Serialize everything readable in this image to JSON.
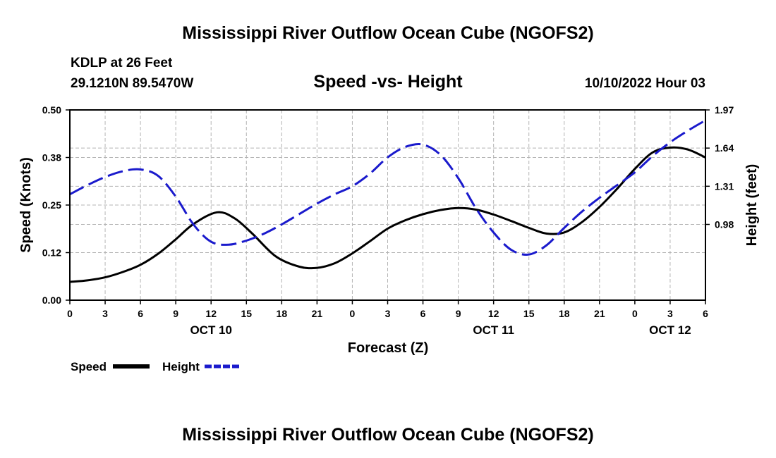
{
  "header": {
    "title": "Mississippi River Outflow Ocean Cube (NGOFS2)",
    "station": "KDLP at 26 Feet",
    "coords": "29.1210N  89.5470W",
    "chart_title": "Speed -vs- Height",
    "timestamp": "10/10/2022 Hour 03"
  },
  "footer": {
    "title": "Mississippi River Outflow Ocean Cube (NGOFS2)"
  },
  "colors": {
    "speed": "#000000",
    "height": "#1a1acc",
    "grid": "#b4b4b4"
  },
  "chart_data": {
    "type": "line",
    "title": "Speed -vs- Height",
    "xlabel": "Forecast (Z)",
    "ylabel": "Speed (Knots)",
    "y2label": "Height (feet)",
    "xlim": [
      0,
      54
    ],
    "ylim": [
      0,
      0.5
    ],
    "y2lim": [
      0.325,
      1.97
    ],
    "x_ticks": [
      0,
      3,
      6,
      9,
      12,
      15,
      18,
      21,
      24,
      27,
      30,
      33,
      36,
      39,
      42,
      45,
      48,
      51,
      54
    ],
    "x_tick_labels": [
      "0",
      "3",
      "6",
      "9",
      "12",
      "15",
      "18",
      "21",
      "0",
      "3",
      "6",
      "9",
      "12",
      "15",
      "18",
      "21",
      "0",
      "3",
      "6"
    ],
    "y_ticks": [
      0,
      0.125,
      0.25,
      0.375,
      0.5
    ],
    "y_tick_labels": [
      "0.00",
      "0.12",
      "0.25",
      "0.38",
      "0.50"
    ],
    "y2_ticks": [
      0.98,
      1.31,
      1.64,
      1.97
    ],
    "y2_tick_labels": [
      "0.98",
      "1.31",
      "1.64",
      "1.97"
    ],
    "date_labels": [
      {
        "x": 12,
        "label": "OCT 10"
      },
      {
        "x": 36,
        "label": "OCT 11"
      },
      {
        "x": 51,
        "label": "OCT 12"
      }
    ],
    "series": [
      {
        "name": "Speed",
        "axis": "left",
        "style": "solid",
        "x": [
          0,
          1.5,
          3,
          4.5,
          6,
          7.5,
          9,
          10.5,
          12.5,
          14,
          15.5,
          17.5,
          19.5,
          21,
          22.5,
          24,
          25.5,
          27,
          28.5,
          30,
          31.5,
          33,
          34.5,
          36,
          37.5,
          39,
          40.5,
          42,
          43.5,
          45,
          46.5,
          48,
          49.5,
          51,
          52.5,
          54
        ],
        "values": [
          0.048,
          0.052,
          0.06,
          0.074,
          0.093,
          0.122,
          0.16,
          0.2,
          0.231,
          0.215,
          0.175,
          0.115,
          0.088,
          0.085,
          0.097,
          0.123,
          0.155,
          0.188,
          0.21,
          0.226,
          0.237,
          0.242,
          0.238,
          0.225,
          0.208,
          0.19,
          0.175,
          0.178,
          0.205,
          0.245,
          0.293,
          0.345,
          0.388,
          0.401,
          0.396,
          0.375
        ]
      },
      {
        "name": "Height",
        "axis": "right",
        "style": "dashed",
        "x": [
          0,
          1.5,
          3,
          4.5,
          6,
          7.5,
          9,
          10.5,
          12,
          13.5,
          15,
          16.5,
          18,
          19.5,
          21,
          22.5,
          24,
          25.5,
          27,
          28.5,
          30,
          31.5,
          33,
          34.5,
          36,
          37.5,
          39,
          40.5,
          42,
          43.5,
          45,
          46.5,
          48,
          49.5,
          51,
          52.5,
          54
        ],
        "values": [
          1.24,
          1.32,
          1.39,
          1.44,
          1.455,
          1.4,
          1.22,
          0.98,
          0.83,
          0.805,
          0.84,
          0.9,
          0.98,
          1.07,
          1.16,
          1.24,
          1.31,
          1.42,
          1.56,
          1.65,
          1.67,
          1.58,
          1.38,
          1.12,
          0.91,
          0.76,
          0.72,
          0.8,
          0.95,
          1.09,
          1.21,
          1.32,
          1.43,
          1.57,
          1.69,
          1.79,
          1.88
        ]
      }
    ],
    "legend": [
      {
        "label": "Speed",
        "series": "Speed"
      },
      {
        "label": "Height",
        "series": "Height"
      }
    ]
  }
}
